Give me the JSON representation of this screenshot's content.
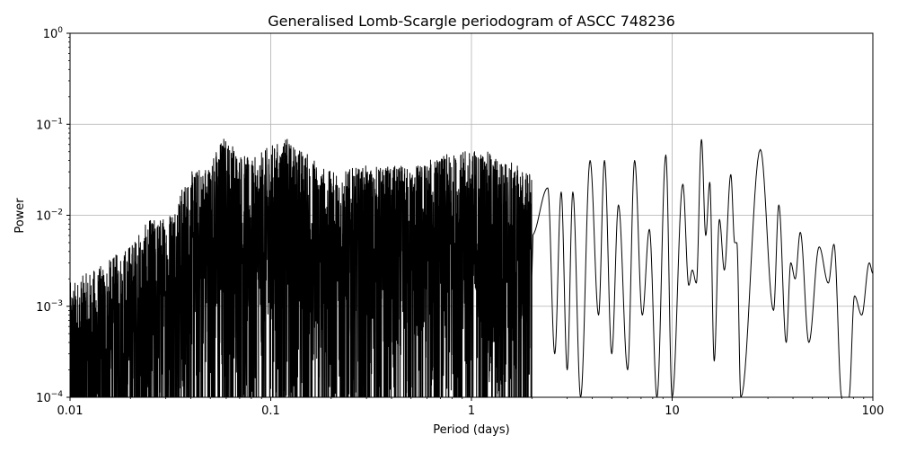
{
  "chart_data": {
    "type": "line",
    "title": "Generalised Lomb-Scargle periodogram of ASCC 748236",
    "xlabel": "Period (days)",
    "ylabel": "Power",
    "xscale": "log",
    "yscale": "log",
    "xlim": [
      0.01,
      100
    ],
    "ylim": [
      0.0001,
      1
    ],
    "grid": true,
    "x_ticks": [
      {
        "value": 0.01,
        "label": "0.01"
      },
      {
        "value": 0.1,
        "label": "0.1"
      },
      {
        "value": 1,
        "label": "1"
      },
      {
        "value": 10,
        "label": "10"
      },
      {
        "value": 100,
        "label": "100"
      }
    ],
    "y_ticks": [
      {
        "value": 0.0001,
        "base": "10",
        "exp": "−4"
      },
      {
        "value": 0.001,
        "base": "10",
        "exp": "−3"
      },
      {
        "value": 0.01,
        "base": "10",
        "exp": "−2"
      },
      {
        "value": 0.1,
        "base": "10",
        "exp": "−1"
      },
      {
        "value": 1,
        "base": "10",
        "exp": "0"
      }
    ],
    "series": [
      {
        "color": "#000000",
        "envelope": [
          {
            "period": 0.01,
            "power": 0.0018
          },
          {
            "period": 0.015,
            "power": 0.003
          },
          {
            "period": 0.02,
            "power": 0.005
          },
          {
            "period": 0.025,
            "power": 0.009
          },
          {
            "period": 0.03,
            "power": 0.01
          },
          {
            "period": 0.04,
            "power": 0.03
          },
          {
            "period": 0.05,
            "power": 0.04
          },
          {
            "period": 0.058,
            "power": 0.078
          },
          {
            "period": 0.08,
            "power": 0.04
          },
          {
            "period": 0.1,
            "power": 0.06
          },
          {
            "period": 0.12,
            "power": 0.07
          },
          {
            "period": 0.15,
            "power": 0.05
          },
          {
            "period": 0.2,
            "power": 0.03
          },
          {
            "period": 0.3,
            "power": 0.035
          },
          {
            "period": 0.4,
            "power": 0.035
          },
          {
            "period": 0.5,
            "power": 0.035
          },
          {
            "period": 0.7,
            "power": 0.045
          },
          {
            "period": 0.9,
            "power": 0.05
          },
          {
            "period": 1.1,
            "power": 0.055
          },
          {
            "period": 1.5,
            "power": 0.04
          },
          {
            "period": 2,
            "power": 0.03
          }
        ],
        "peaks": [
          {
            "period": 2.4,
            "power": 0.02
          },
          {
            "period": 2.8,
            "power": 0.018
          },
          {
            "period": 3.2,
            "power": 0.018
          },
          {
            "period": 3.9,
            "power": 0.04
          },
          {
            "period": 4.6,
            "power": 0.04
          },
          {
            "period": 5.4,
            "power": 0.013
          },
          {
            "period": 6.5,
            "power": 0.04
          },
          {
            "period": 7.7,
            "power": 0.007
          },
          {
            "period": 9.3,
            "power": 0.046
          },
          {
            "period": 11.3,
            "power": 0.022
          },
          {
            "period": 12.6,
            "power": 0.0025
          },
          {
            "period": 14.0,
            "power": 0.068
          },
          {
            "period": 15.4,
            "power": 0.023
          },
          {
            "period": 17.2,
            "power": 0.009
          },
          {
            "period": 19.6,
            "power": 0.028
          },
          {
            "period": 21.0,
            "power": 0.005
          },
          {
            "period": 27.5,
            "power": 0.053
          },
          {
            "period": 34.0,
            "power": 0.013
          },
          {
            "period": 39.0,
            "power": 0.003
          },
          {
            "period": 43.5,
            "power": 0.0065
          },
          {
            "period": 54.0,
            "power": 0.0045
          },
          {
            "period": 64.0,
            "power": 0.0048
          },
          {
            "period": 81.0,
            "power": 0.0013
          },
          {
            "period": 96.0,
            "power": 0.003
          }
        ],
        "troughs": [
          {
            "period": 2.6,
            "power": 0.0003
          },
          {
            "period": 3.0,
            "power": 0.0002
          },
          {
            "period": 3.5,
            "power": 0.0001
          },
          {
            "period": 4.3,
            "power": 0.0008
          },
          {
            "period": 5.0,
            "power": 0.0003
          },
          {
            "period": 6.0,
            "power": 0.0002
          },
          {
            "period": 7.1,
            "power": 0.0008
          },
          {
            "period": 8.4,
            "power": 0.0001
          },
          {
            "period": 10.0,
            "power": 0.0001
          },
          {
            "period": 12.1,
            "power": 0.0017
          },
          {
            "period": 13.2,
            "power": 0.0018
          },
          {
            "period": 14.7,
            "power": 0.006
          },
          {
            "period": 16.2,
            "power": 0.00025
          },
          {
            "period": 18.2,
            "power": 0.0025
          },
          {
            "period": 20.5,
            "power": 0.005
          },
          {
            "period": 22.0,
            "power": 0.0001
          },
          {
            "period": 32.0,
            "power": 0.0009
          },
          {
            "period": 37.0,
            "power": 0.0004
          },
          {
            "period": 41.0,
            "power": 0.002
          },
          {
            "period": 48.0,
            "power": 0.0004
          },
          {
            "period": 60.0,
            "power": 0.0018
          },
          {
            "period": 70.0,
            "power": 0.0001
          },
          {
            "period": 76.0,
            "power": 0.0001
          },
          {
            "period": 88.0,
            "power": 0.0008
          },
          {
            "period": 100.0,
            "power": 0.0023
          }
        ]
      }
    ]
  }
}
